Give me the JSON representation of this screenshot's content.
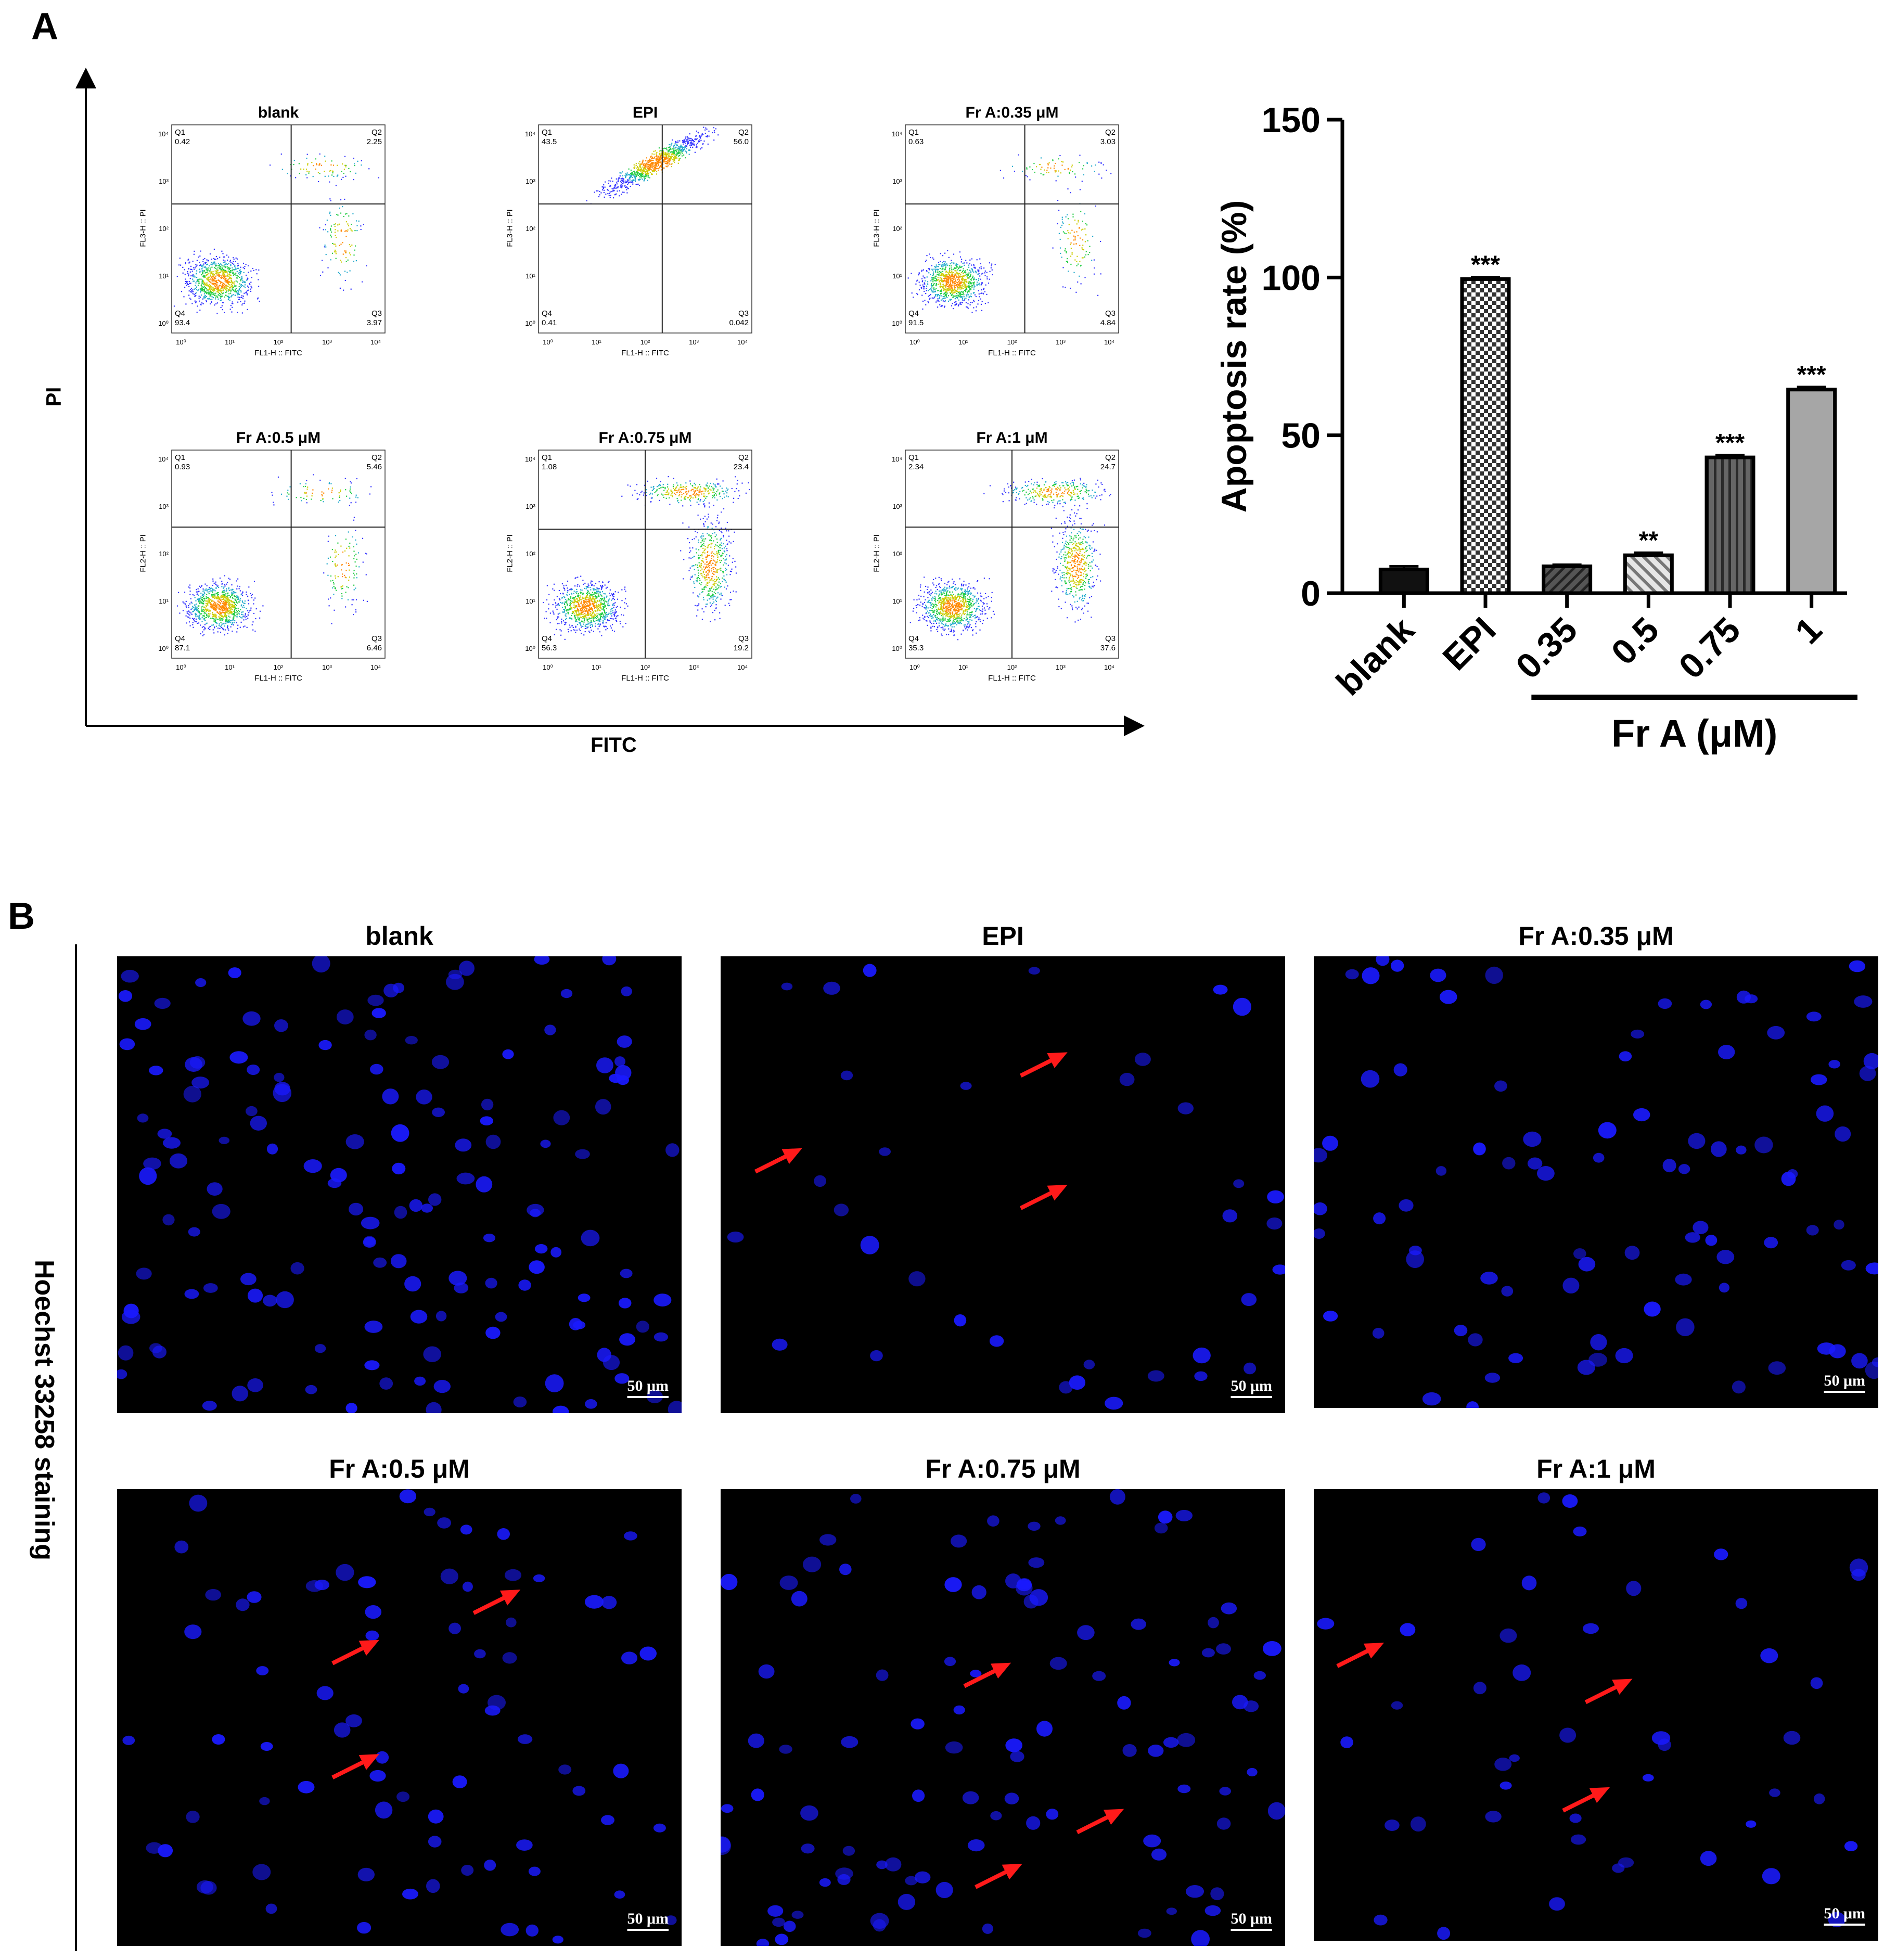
{
  "figure": {
    "panel_a_label": "A",
    "panel_b_label": "B"
  },
  "flow_cytometry": {
    "y_axis_label": "PI",
    "x_axis_label": "FITC",
    "plot_xlabel": "FL1-H :: FITC",
    "plot_ylabel": "FL3-H :: PI",
    "plot_ylabel_alt": "FL2-H :: PI",
    "tick_labels": [
      "10⁰",
      "10¹",
      "10²",
      "10³",
      "10⁴"
    ],
    "quadrant_names": [
      "Q1",
      "Q2",
      "Q3",
      "Q4"
    ],
    "plots": [
      {
        "title": "blank",
        "ylabel": "FL3-H :: PI",
        "q1": "0.42",
        "q2": "2.25",
        "q3": "3.97",
        "q4": "93.4"
      },
      {
        "title": "EPI",
        "ylabel": "FL3-H :: PI",
        "q1": "43.5",
        "q2": "56.0",
        "q3": "0.042",
        "q4": "0.41"
      },
      {
        "title": "Fr A:0.35 μM",
        "ylabel": "FL3-H :: PI",
        "q1": "0.63",
        "q2": "3.03",
        "q3": "4.84",
        "q4": "91.5"
      },
      {
        "title": "Fr A:0.5 μM",
        "ylabel": "FL2-H :: PI",
        "q1": "0.93",
        "q2": "5.46",
        "q3": "6.46",
        "q4": "87.1"
      },
      {
        "title": "Fr A:0.75 μM",
        "ylabel": "FL2-H :: PI",
        "q1": "1.08",
        "q2": "23.4",
        "q3": "19.2",
        "q4": "56.3"
      },
      {
        "title": "Fr A:1 μM",
        "ylabel": "FL2-H :: PI",
        "q1": "2.34",
        "q2": "24.7",
        "q3": "37.6",
        "q4": "35.3"
      }
    ]
  },
  "chart_data": {
    "type": "bar",
    "categories": [
      "blank",
      "EPI",
      "0.35",
      "0.5",
      "0.75",
      "1"
    ],
    "values": [
      7.5,
      99.5,
      8.5,
      12.0,
      43.0,
      64.5
    ],
    "errors": [
      1.0,
      0.6,
      0.5,
      0.8,
      0.7,
      0.8
    ],
    "significance": [
      "",
      "***",
      "",
      "**",
      "***",
      "***"
    ],
    "fills": [
      "solid-black",
      "checker",
      "hatch-dark",
      "hatch-light",
      "stripe-vertical",
      "solid-gray"
    ],
    "ylabel": "Apoptosis rate (%)",
    "group_label": "Fr A (μM)",
    "ylim": [
      0,
      150
    ],
    "yticks": [
      "0",
      "50",
      "100",
      "150"
    ],
    "grid": false
  },
  "hoechst": {
    "side_label": "Hoechst 33258 staining",
    "scale_bar": "50 μm",
    "panels": [
      {
        "title": "blank"
      },
      {
        "title": "EPI"
      },
      {
        "title": "Fr A:0.35 μM"
      },
      {
        "title": "Fr A:0.5 μM"
      },
      {
        "title": "Fr A:0.75 μM"
      },
      {
        "title": "Fr A:1 μM"
      }
    ],
    "nucleus_color": "#1a1aff",
    "arrow_color": "#ff1a1a"
  }
}
